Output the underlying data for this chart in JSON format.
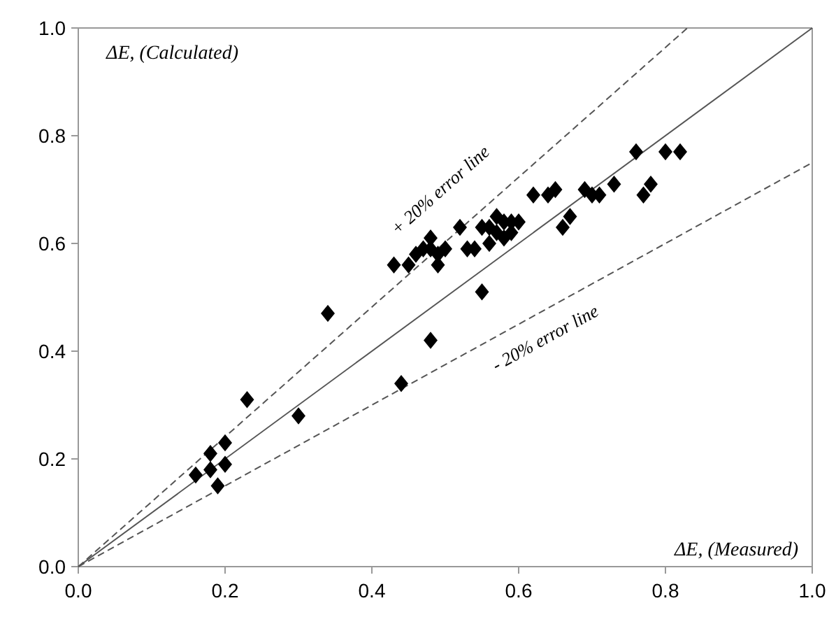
{
  "chart_data": {
    "type": "scatter",
    "xlim": [
      0,
      1
    ],
    "ylim": [
      0,
      1
    ],
    "xticks": [
      {
        "value": 0,
        "label": "0.0"
      },
      {
        "value": 0.2,
        "label": "0.2"
      },
      {
        "value": 0.4,
        "label": "0.4"
      },
      {
        "value": 0.6,
        "label": "0.6"
      },
      {
        "value": 0.8,
        "label": "0.8"
      },
      {
        "value": 1,
        "label": "1.0"
      }
    ],
    "yticks": [
      {
        "value": 0,
        "label": "0.0"
      },
      {
        "value": 0.2,
        "label": "0.2"
      },
      {
        "value": 0.4,
        "label": "0.4"
      },
      {
        "value": 0.6,
        "label": "0.6"
      },
      {
        "value": 0.8,
        "label": "0.8"
      },
      {
        "value": 1,
        "label": "1.0"
      }
    ],
    "xlabel": "ΔE, (Measured)",
    "ylabel": "ΔE, (Calculated)",
    "grid": false,
    "annotations": [
      "+ 20% error line",
      "- 20% error line"
    ],
    "series": [
      {
        "marker": "diamond",
        "color": "#000000",
        "x": [
          0.16,
          0.18,
          0.18,
          0.19,
          0.2,
          0.2,
          0.23,
          0.3,
          0.34,
          0.43,
          0.45,
          0.46,
          0.47,
          0.48,
          0.48,
          0.49,
          0.49,
          0.48,
          0.44,
          0.5,
          0.52,
          0.53,
          0.54,
          0.55,
          0.55,
          0.56,
          0.56,
          0.57,
          0.57,
          0.58,
          0.58,
          0.59,
          0.59,
          0.6,
          0.62,
          0.64,
          0.65,
          0.66,
          0.67,
          0.69,
          0.7,
          0.71,
          0.73,
          0.76,
          0.77,
          0.78,
          0.8,
          0.82
        ],
        "values": [
          0.17,
          0.21,
          0.18,
          0.15,
          0.19,
          0.23,
          0.31,
          0.28,
          0.47,
          0.56,
          0.56,
          0.58,
          0.59,
          0.61,
          0.59,
          0.56,
          0.58,
          0.42,
          0.34,
          0.59,
          0.63,
          0.59,
          0.59,
          0.51,
          0.63,
          0.6,
          0.63,
          0.62,
          0.65,
          0.64,
          0.61,
          0.64,
          0.62,
          0.64,
          0.69,
          0.69,
          0.7,
          0.63,
          0.65,
          0.7,
          0.69,
          0.69,
          0.71,
          0.77,
          0.69,
          0.71,
          0.77,
          0.77
        ]
      },
      {
        "type": "line",
        "line_style": "solid",
        "color": "#555555",
        "x": [
          0,
          1
        ],
        "values": [
          0,
          1
        ]
      },
      {
        "type": "line",
        "line_style": "dashed",
        "color": "#555555",
        "x": [
          0,
          0.83
        ],
        "values": [
          0,
          1
        ]
      },
      {
        "type": "line",
        "line_style": "dashed",
        "color": "#555555",
        "x": [
          0,
          1
        ],
        "values": [
          0,
          0.75
        ]
      }
    ]
  }
}
